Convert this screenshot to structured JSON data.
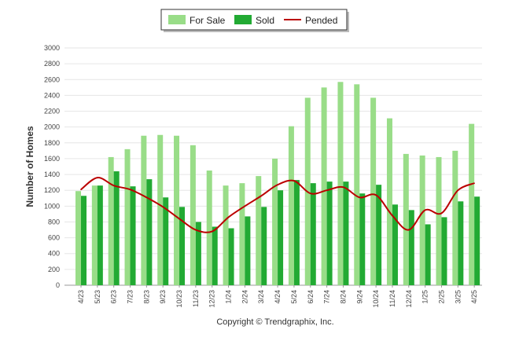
{
  "chart_data": {
    "type": "bar",
    "ylabel": "Number of Homes",
    "xlabel": "",
    "ylim": [
      0,
      3000
    ],
    "yticks": [
      0,
      200,
      400,
      600,
      800,
      1000,
      1200,
      1400,
      1600,
      1800,
      2000,
      2200,
      2400,
      2600,
      2800,
      3000
    ],
    "categories": [
      "4/23",
      "5/23",
      "6/23",
      "7/23",
      "8/23",
      "9/23",
      "10/23",
      "11/23",
      "12/23",
      "1/24",
      "2/24",
      "3/24",
      "4/24",
      "5/24",
      "6/24",
      "7/24",
      "8/24",
      "9/24",
      "10/24",
      "11/24",
      "12/24",
      "1/25",
      "2/25",
      "3/25",
      "4/25"
    ],
    "series": [
      {
        "name": "For Sale",
        "kind": "bar",
        "color": "#99dd88",
        "values": [
          1190,
          1260,
          1620,
          1720,
          1890,
          1900,
          1890,
          1770,
          1450,
          1260,
          1290,
          1380,
          1600,
          2010,
          2370,
          2500,
          2570,
          2540,
          2370,
          2110,
          1660,
          1640,
          1620,
          1700,
          2040
        ]
      },
      {
        "name": "Sold",
        "kind": "bar",
        "color": "#22aa33",
        "values": [
          1130,
          1260,
          1440,
          1250,
          1340,
          1110,
          990,
          800,
          740,
          720,
          870,
          990,
          1200,
          1330,
          1290,
          1310,
          1310,
          1160,
          1270,
          1020,
          950,
          770,
          860,
          1060,
          1120
        ]
      },
      {
        "name": "Pended",
        "kind": "line",
        "color": "#bb0000",
        "values": [
          1210,
          1360,
          1260,
          1210,
          1110,
          990,
          840,
          700,
          680,
          860,
          1000,
          1130,
          1270,
          1320,
          1160,
          1200,
          1240,
          1110,
          1140,
          880,
          700,
          950,
          910,
          1200,
          1290
        ]
      }
    ],
    "legend_position": "top-center",
    "grid": true
  },
  "footer": {
    "copyright": "Copyright © Trendgraphix, Inc."
  }
}
